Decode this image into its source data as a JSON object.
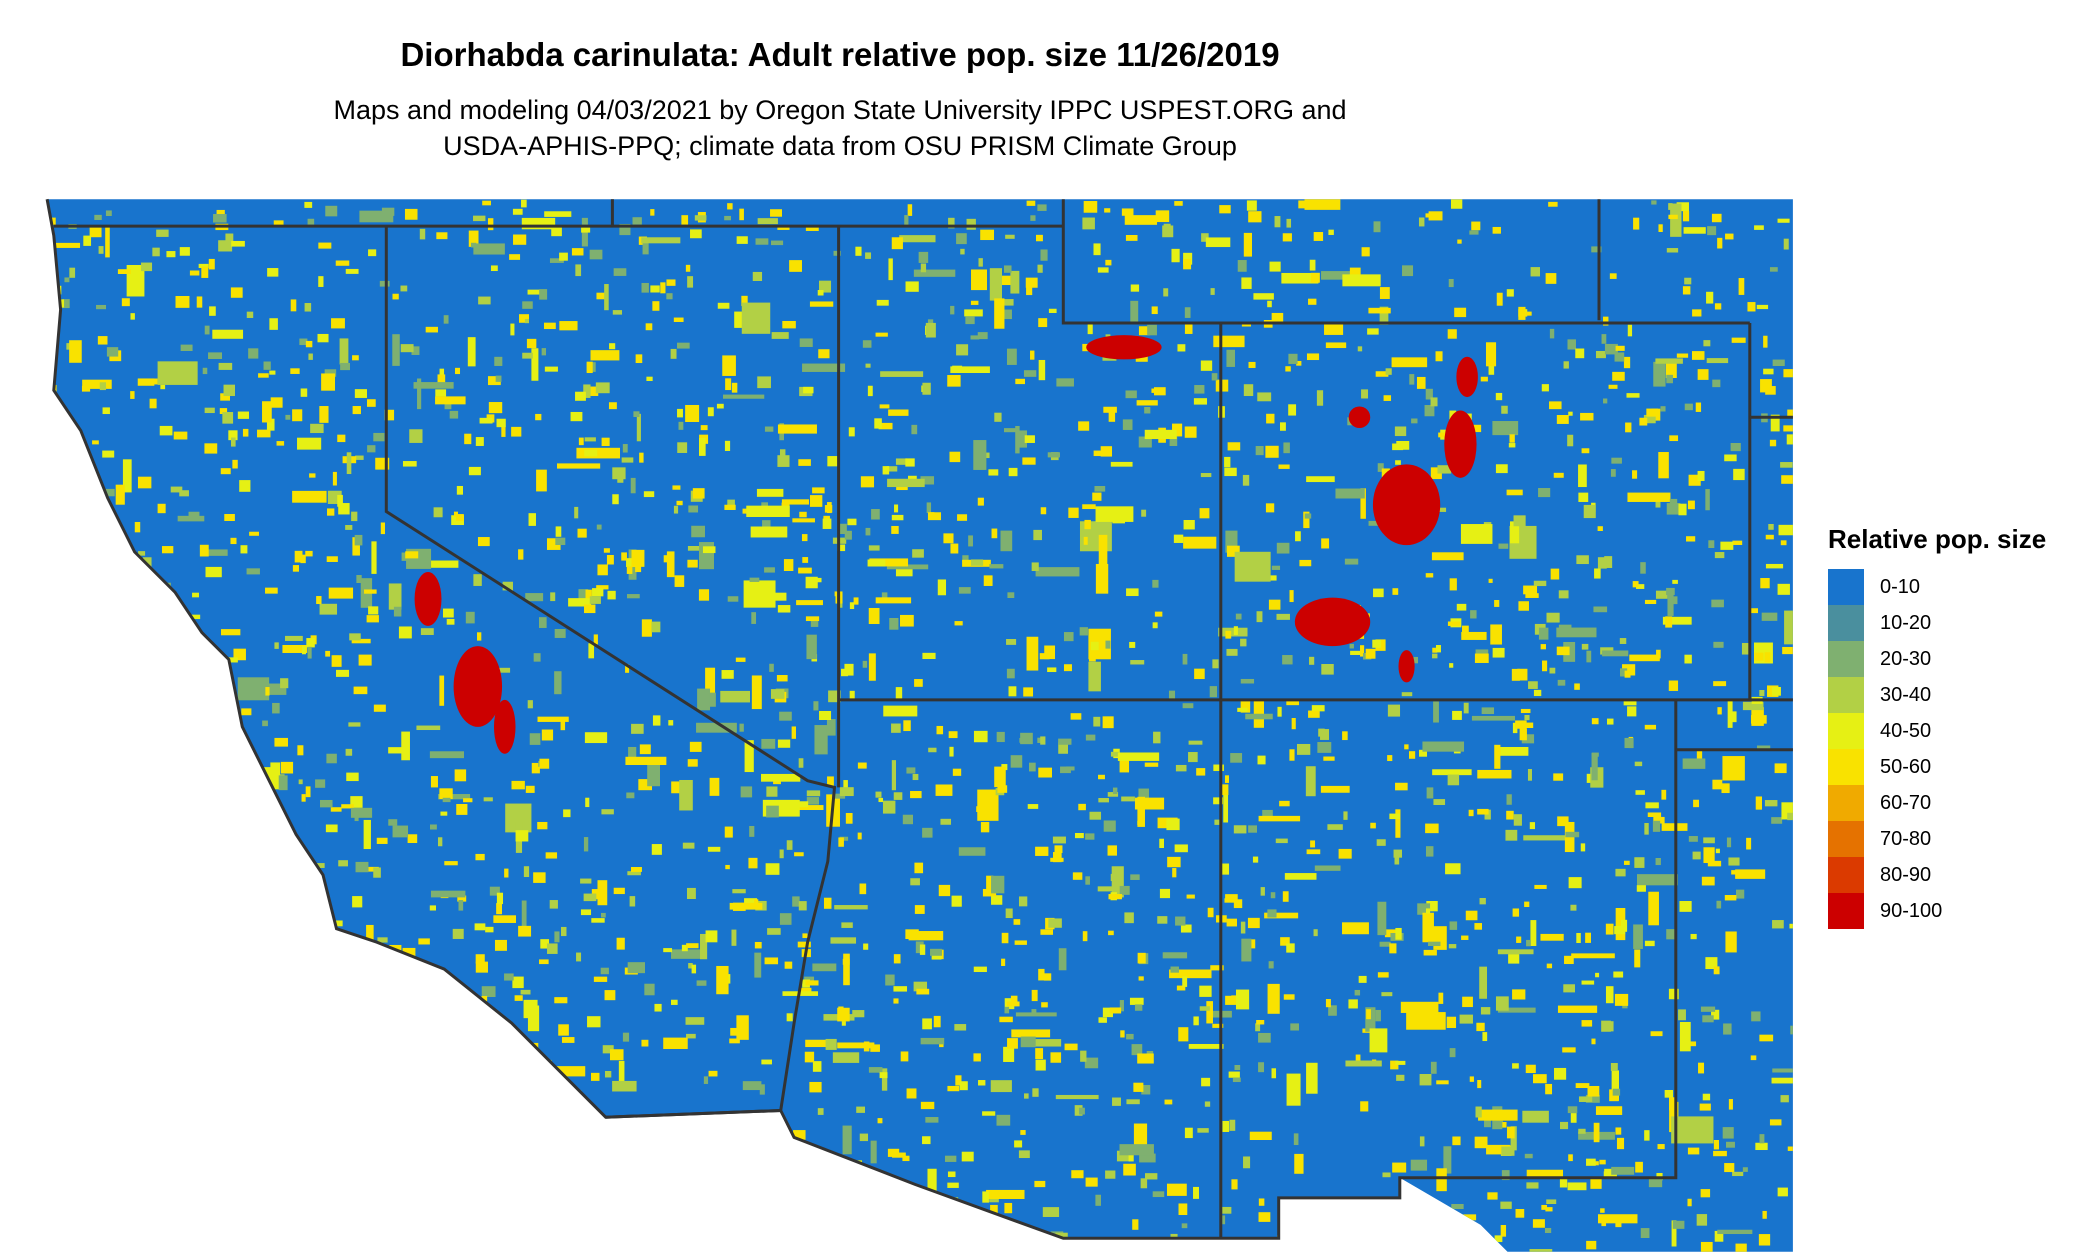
{
  "title": "Diorhabda carinulata: Adult relative pop. size 11/26/2019",
  "subtitle_line1": "Maps and modeling 04/03/2021 by Oregon State University IPPC USPEST.ORG and",
  "subtitle_line2": "USDA-APHIS-PPQ; climate data from OSU PRISM Climate Group",
  "chart_data": {
    "type": "heatmap",
    "title": "Diorhabda carinulata: Adult relative pop. size 11/26/2019",
    "legend": {
      "title": "Relative pop. size",
      "placement": "right",
      "entries": [
        {
          "label": "0-10",
          "color": "#1874CD"
        },
        {
          "label": "10-20",
          "color": "#4A8F9E"
        },
        {
          "label": "20-30",
          "color": "#7FB070"
        },
        {
          "label": "30-40",
          "color": "#B2D045"
        },
        {
          "label": "40-50",
          "color": "#E6F014"
        },
        {
          "label": "50-60",
          "color": "#F9E200"
        },
        {
          "label": "60-70",
          "color": "#F0AA00"
        },
        {
          "label": "70-80",
          "color": "#E57200"
        },
        {
          "label": "80-90",
          "color": "#DB3A00"
        },
        {
          "label": "90-100",
          "color": "#CC0000"
        }
      ]
    },
    "region": "Western United States (CA, NV, UT, AZ, CO, NM and parts of OR, ID, WY, NE, KS, OK, TX)",
    "border_color": "#333333"
  }
}
